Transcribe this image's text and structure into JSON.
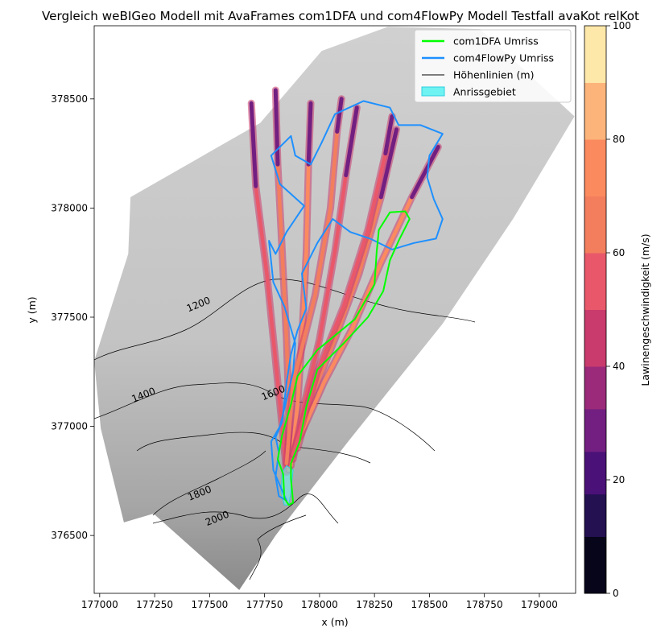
{
  "chart_data": {
    "type": "map",
    "title": "Vergleich weBIGeo Modell mit AvaFrames com1DFA und com4FlowPy Modell Testfall avaKot relKot",
    "xlabel": "x (m)",
    "ylabel": "y (m)",
    "xlim": [
      176975,
      179165
    ],
    "ylim": [
      376235,
      378835
    ],
    "xticks": [
      177000,
      177250,
      177500,
      177750,
      178000,
      178250,
      178500,
      178750,
      179000
    ],
    "yticks": [
      376500,
      377000,
      377500,
      378000,
      378500
    ],
    "colorbar": {
      "label": "Lawinengeschwindigkeit (m/s)",
      "min": 0,
      "max": 100,
      "ticks": [
        0,
        20,
        40,
        60,
        80,
        100
      ],
      "levels": [
        0,
        10,
        17.5,
        25,
        32.5,
        40,
        50,
        60,
        70,
        80,
        90,
        100
      ],
      "colors": [
        "#07051a",
        "#231151",
        "#4a1278",
        "#721f81",
        "#9b2b7a",
        "#c83b6c",
        "#e8586a",
        "#f27e5e",
        "#fc8a5f",
        "#fcb47b",
        "#fde7a9"
      ]
    },
    "legend": {
      "position": "top-right",
      "entries": [
        {
          "label": "com1DFA Umriss",
          "color": "#00ff00",
          "kind": "line"
        },
        {
          "label": "com4FlowPy Umriss",
          "color": "#1e90ff",
          "kind": "line"
        },
        {
          "label": "Höhenlinien (m)",
          "color": "#000000",
          "kind": "line"
        },
        {
          "label": "Anrissgebiet",
          "color": "#6ff2f2",
          "kind": "patch"
        }
      ]
    },
    "contours": [
      {
        "label": "1200",
        "x": 177455,
        "y": 377545
      },
      {
        "label": "1400",
        "x": 177205,
        "y": 377130
      },
      {
        "label": "1600",
        "x": 177795,
        "y": 377140
      },
      {
        "label": "1800",
        "x": 177460,
        "y": 376680
      },
      {
        "label": "2000",
        "x": 177540,
        "y": 376565
      }
    ],
    "domain_outline": [
      [
        176975,
        377300
      ],
      [
        177130,
        377790
      ],
      [
        177140,
        378050
      ],
      [
        177730,
        378390
      ],
      [
        178010,
        378720
      ],
      [
        178310,
        378830
      ],
      [
        178730,
        378820
      ],
      [
        179160,
        378420
      ],
      [
        178880,
        377950
      ],
      [
        178560,
        377470
      ],
      [
        178130,
        376930
      ],
      [
        177800,
        376500
      ],
      [
        177635,
        376250
      ],
      [
        177245,
        376600
      ],
      [
        177110,
        376560
      ],
      [
        177005,
        376990
      ]
    ],
    "com1DFA_outline": [
      [
        177835,
        376780
      ],
      [
        177840,
        376670
      ],
      [
        177860,
        376640
      ],
      [
        177880,
        376650
      ],
      [
        177870,
        376760
      ],
      [
        177870,
        376830
      ],
      [
        177910,
        376930
      ],
      [
        177940,
        377090
      ],
      [
        177990,
        377260
      ],
      [
        178110,
        377380
      ],
      [
        178220,
        377500
      ],
      [
        178290,
        377620
      ],
      [
        178320,
        377760
      ],
      [
        178360,
        377850
      ],
      [
        178410,
        377950
      ],
      [
        178390,
        377985
      ],
      [
        178320,
        377980
      ],
      [
        178270,
        377900
      ],
      [
        178260,
        377800
      ],
      [
        178250,
        377650
      ],
      [
        178160,
        377490
      ],
      [
        177990,
        377350
      ],
      [
        177900,
        377230
      ],
      [
        177870,
        377100
      ],
      [
        177830,
        376960
      ],
      [
        177810,
        376850
      ]
    ],
    "com4FlowPy_outline": [
      [
        177850,
        376660
      ],
      [
        177815,
        376680
      ],
      [
        177800,
        376770
      ],
      [
        177815,
        376880
      ],
      [
        177800,
        376950
      ],
      [
        177830,
        377020
      ],
      [
        177850,
        377200
      ],
      [
        177870,
        377330
      ],
      [
        177900,
        377440
      ],
      [
        177940,
        377540
      ],
      [
        177920,
        377700
      ],
      [
        177990,
        377840
      ],
      [
        178060,
        377950
      ],
      [
        178140,
        377890
      ],
      [
        178230,
        377860
      ],
      [
        178330,
        377810
      ],
      [
        178430,
        377840
      ],
      [
        178530,
        377860
      ],
      [
        178560,
        377950
      ],
      [
        178520,
        378040
      ],
      [
        178490,
        378140
      ],
      [
        178500,
        378240
      ],
      [
        178560,
        378340
      ],
      [
        178460,
        378380
      ],
      [
        178360,
        378380
      ],
      [
        178320,
        378460
      ],
      [
        178200,
        378490
      ],
      [
        178070,
        378430
      ],
      [
        178010,
        378300
      ],
      [
        177960,
        378200
      ],
      [
        177890,
        378240
      ],
      [
        177870,
        378330
      ],
      [
        177780,
        378240
      ],
      [
        177820,
        378110
      ],
      [
        177930,
        378010
      ],
      [
        177850,
        377890
      ],
      [
        177800,
        377790
      ],
      [
        177770,
        377850
      ],
      [
        177790,
        377660
      ],
      [
        177840,
        377550
      ],
      [
        177890,
        377380
      ],
      [
        177880,
        377250
      ],
      [
        177850,
        377120
      ],
      [
        177820,
        377000
      ],
      [
        177780,
        376930
      ],
      [
        177790,
        376800
      ]
    ],
    "release_area": [
      [
        177830,
        376790
      ],
      [
        177850,
        376820
      ],
      [
        177880,
        376800
      ],
      [
        177870,
        376700
      ],
      [
        177860,
        376640
      ],
      [
        177840,
        376640
      ],
      [
        177825,
        376700
      ]
    ]
  }
}
